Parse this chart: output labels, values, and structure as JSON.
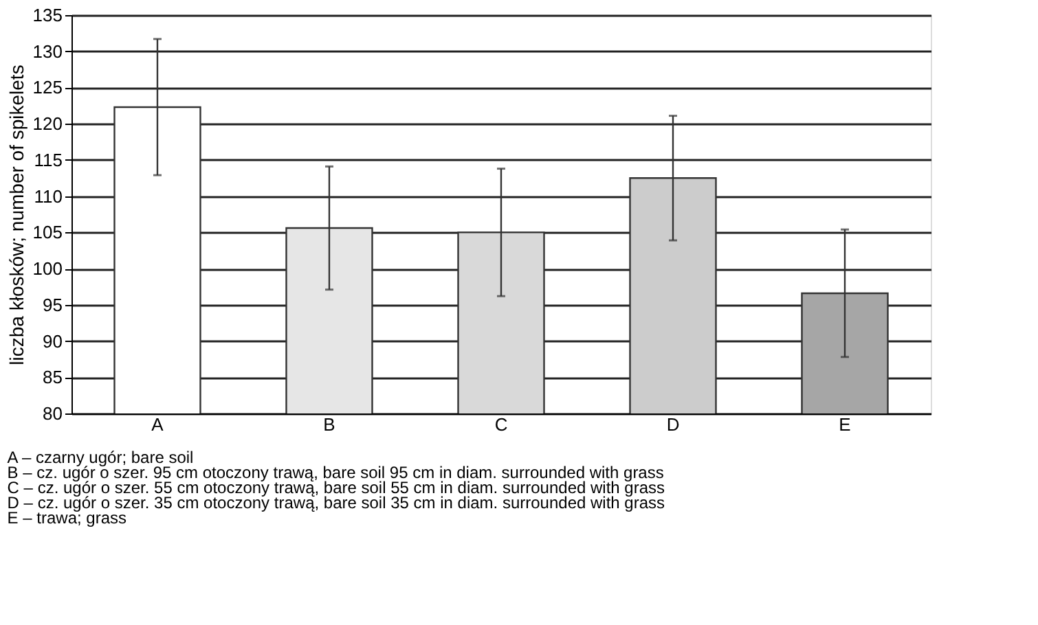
{
  "chart_data": {
    "type": "bar",
    "ylabel": "liczba kłosków; number of spikelets",
    "categories": [
      "A",
      "B",
      "C",
      "D",
      "E"
    ],
    "values": [
      122.3,
      105.6,
      105.0,
      112.5,
      96.6
    ],
    "errors": [
      9.4,
      8.5,
      8.8,
      8.6,
      8.8
    ],
    "colors": [
      "#ffffff",
      "#e6e6e6",
      "#d9d9d9",
      "#cccccc",
      "#a6a6a6"
    ],
    "ylim": [
      80,
      135
    ],
    "yticks": [
      80,
      85,
      90,
      95,
      100,
      105,
      110,
      115,
      120,
      125,
      130,
      135
    ],
    "grid": "y",
    "annotations": [
      "A – czarny ugór; bare soil",
      "B – cz. ugór o szer. 95 cm otoczony trawą, bare soil 95 cm in diam. surrounded with grass",
      "C – cz. ugór o szer. 55 cm otoczony trawą, bare soil 55 cm in diam. surrounded with grass",
      "D – cz. ugór o szer. 35 cm otoczony trawą, bare soil 35 cm in diam. surrounded with grass",
      "E – trawa; grass"
    ]
  }
}
